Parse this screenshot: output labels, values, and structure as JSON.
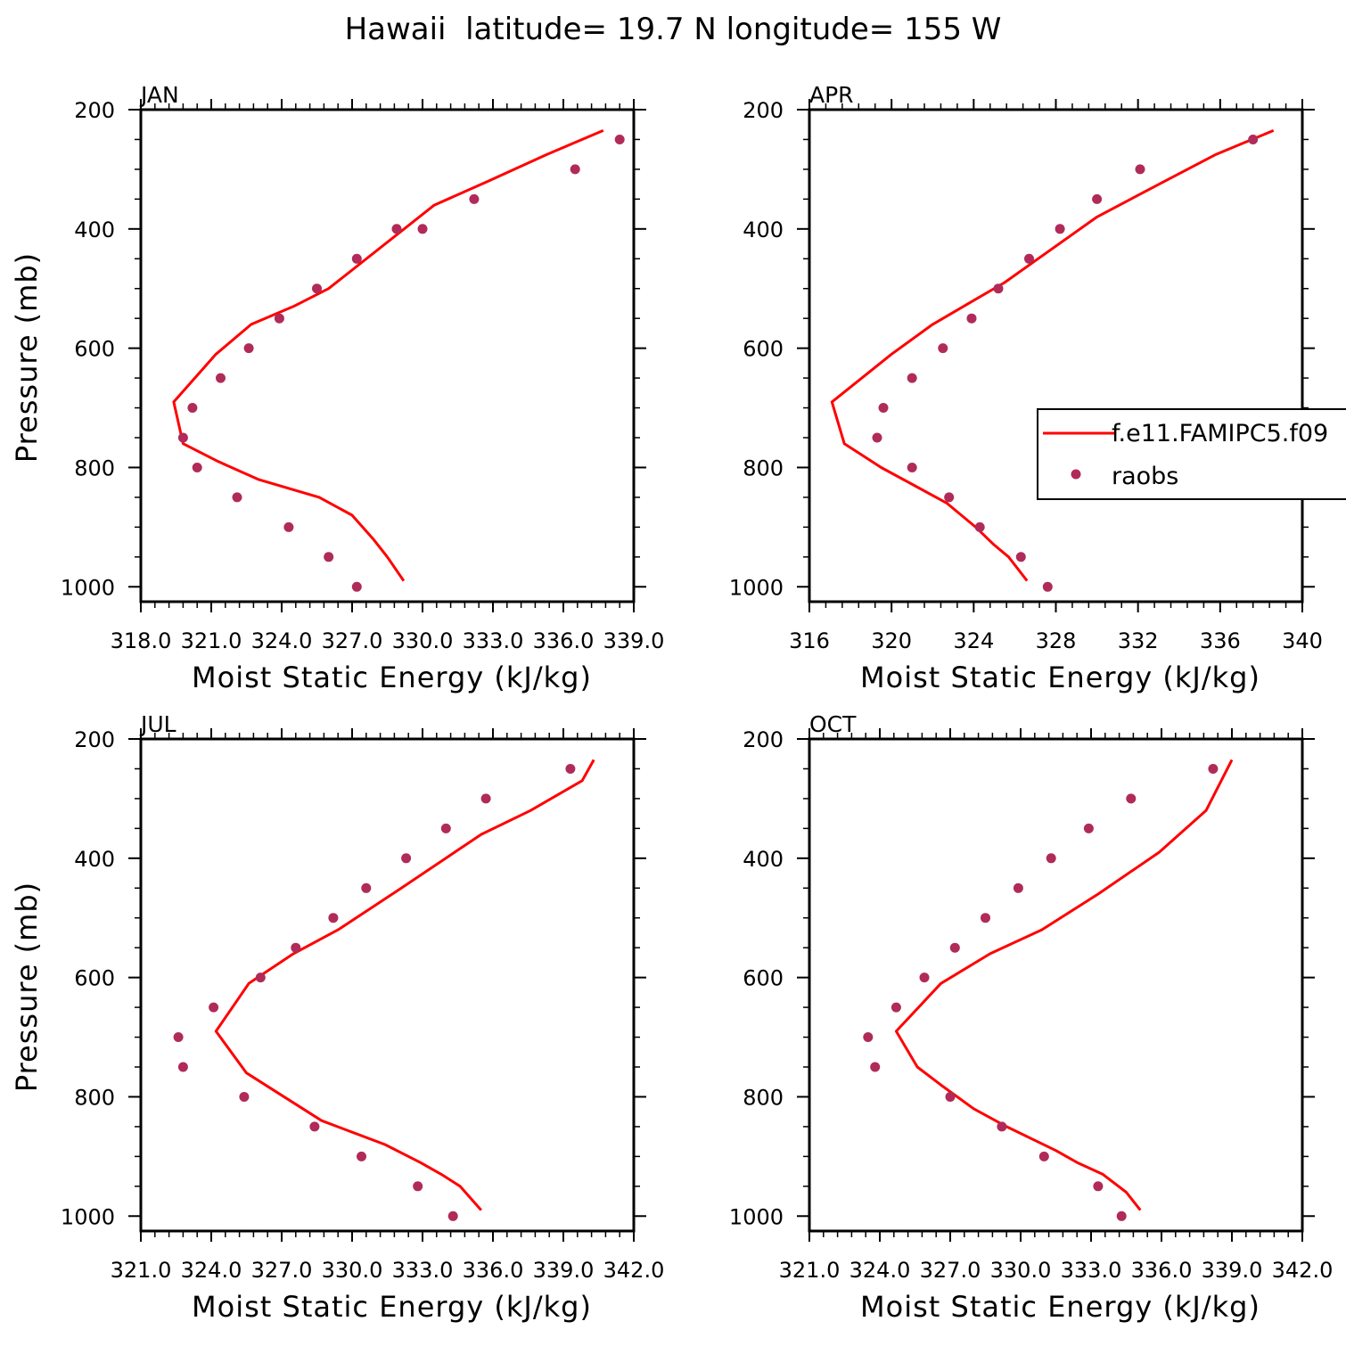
{
  "figure": {
    "title": "Hawaii  latitude= 19.7 N longitude= 155 W"
  },
  "colors": {
    "model": "#ff0000",
    "obs": "#b02a5a",
    "axis": "#000000",
    "background": "#ffffff"
  },
  "legend": {
    "model_label": "f.e11.FAMIPC5.f09",
    "obs_label": "raobs",
    "panel": 1,
    "placement": "right, overlapping figure edge"
  },
  "chart_data": [
    {
      "type": "line",
      "panel_label": "JAN",
      "xlabel": "Moist Static Energy (kJ/kg)",
      "ylabel": "Pressure (mb)",
      "xlim": [
        318,
        339
      ],
      "xticks": [
        318,
        321,
        324,
        327,
        330,
        333,
        336,
        339
      ],
      "xtick_labels": [
        "318.0",
        "321.0",
        "324.0",
        "327.0",
        "330.0",
        "333.0",
        "336.0",
        "339.0"
      ],
      "ylim": [
        200,
        1025
      ],
      "yticks": [
        200,
        400,
        600,
        800,
        1000
      ],
      "y_reversed": true,
      "series": [
        {
          "name": "f.e11.FAMIPC5.f09",
          "kind": "line",
          "x": [
            329.2,
            328.5,
            327.9,
            327.0,
            325.6,
            323.0,
            321.3,
            319.8,
            319.4,
            321.2,
            322.7,
            324.5,
            326.0,
            330.5,
            332.8,
            335.3,
            337.7
          ],
          "y": [
            990,
            950,
            920,
            880,
            850,
            820,
            790,
            760,
            690,
            610,
            560,
            530,
            500,
            360,
            320,
            275,
            235
          ]
        },
        {
          "name": "raobs",
          "kind": "scatter",
          "x": [
            327.2,
            326.0,
            324.3,
            322.1,
            320.4,
            319.8,
            320.2,
            321.4,
            322.6,
            323.9,
            325.5,
            327.2,
            328.9,
            330.0,
            332.2,
            336.5,
            338.4
          ],
          "y": [
            1000,
            950,
            900,
            850,
            800,
            750,
            700,
            650,
            600,
            550,
            500,
            450,
            400,
            400,
            350,
            300,
            250
          ]
        }
      ]
    },
    {
      "type": "line",
      "panel_label": "APR",
      "xlabel": "Moist Static Energy (kJ/kg)",
      "ylabel": "",
      "xlim": [
        316,
        340
      ],
      "xticks": [
        316,
        320,
        324,
        328,
        332,
        336,
        340
      ],
      "xtick_labels": [
        "316",
        "320",
        "324",
        "328",
        "332",
        "336",
        "340"
      ],
      "ylim": [
        200,
        1025
      ],
      "yticks": [
        200,
        400,
        600,
        800,
        1000
      ],
      "y_reversed": true,
      "series": [
        {
          "name": "f.e11.FAMIPC5.f09",
          "kind": "line",
          "x": [
            326.6,
            325.7,
            325.0,
            324.1,
            322.7,
            321.1,
            319.5,
            317.7,
            317.1,
            320.0,
            322.0,
            324.0,
            325.5,
            330.0,
            333.3,
            335.8,
            338.6
          ],
          "y": [
            990,
            950,
            930,
            900,
            860,
            830,
            800,
            760,
            690,
            610,
            560,
            520,
            490,
            380,
            320,
            275,
            235
          ]
        },
        {
          "name": "raobs",
          "kind": "scatter",
          "x": [
            327.6,
            326.3,
            324.3,
            322.8,
            321.0,
            319.3,
            319.6,
            321.0,
            322.5,
            323.9,
            325.2,
            326.7,
            328.2,
            330.0,
            332.1,
            337.6
          ],
          "y": [
            1000,
            950,
            900,
            850,
            800,
            750,
            700,
            650,
            600,
            550,
            500,
            450,
            400,
            350,
            300,
            250
          ]
        }
      ]
    },
    {
      "type": "line",
      "panel_label": "JUL",
      "xlabel": "Moist Static Energy (kJ/kg)",
      "ylabel": "Pressure (mb)",
      "xlim": [
        321,
        342
      ],
      "xticks": [
        321,
        324,
        327,
        330,
        333,
        336,
        339,
        342
      ],
      "xtick_labels": [
        "321.0",
        "324.0",
        "327.0",
        "330.0",
        "333.0",
        "336.0",
        "339.0",
        "342.0"
      ],
      "ylim": [
        200,
        1025
      ],
      "yticks": [
        200,
        400,
        600,
        800,
        1000
      ],
      "y_reversed": true,
      "series": [
        {
          "name": "f.e11.FAMIPC5.f09",
          "kind": "line",
          "x": [
            335.5,
            334.6,
            333.8,
            332.9,
            331.4,
            328.7,
            325.5,
            324.2,
            325.6,
            327.5,
            329.4,
            332.1,
            335.5,
            337.6,
            339.8,
            340.3
          ],
          "y": [
            990,
            950,
            930,
            910,
            880,
            840,
            760,
            690,
            610,
            560,
            520,
            450,
            360,
            320,
            270,
            235
          ]
        },
        {
          "name": "raobs",
          "kind": "scatter",
          "x": [
            334.3,
            332.8,
            330.4,
            328.4,
            325.4,
            322.8,
            322.6,
            324.1,
            326.1,
            327.6,
            329.2,
            330.6,
            332.3,
            334.0,
            335.7,
            339.3
          ],
          "y": [
            1000,
            950,
            900,
            850,
            800,
            750,
            700,
            650,
            600,
            550,
            500,
            450,
            400,
            350,
            300,
            250
          ]
        }
      ]
    },
    {
      "type": "line",
      "panel_label": "OCT",
      "xlabel": "Moist Static Energy (kJ/kg)",
      "ylabel": "",
      "xlim": [
        321,
        342
      ],
      "xticks": [
        321,
        324,
        327,
        330,
        333,
        336,
        339,
        342
      ],
      "xtick_labels": [
        "321.0",
        "324.0",
        "327.0",
        "330.0",
        "333.0",
        "336.0",
        "339.0",
        "342.0"
      ],
      "ylim": [
        200,
        1025
      ],
      "yticks": [
        200,
        400,
        600,
        800,
        1000
      ],
      "y_reversed": true,
      "series": [
        {
          "name": "f.e11.FAMIPC5.f09",
          "kind": "line",
          "x": [
            335.1,
            334.5,
            333.5,
            332.4,
            331.5,
            329.4,
            328.0,
            326.6,
            325.6,
            324.7,
            326.6,
            328.7,
            330.9,
            333.3,
            335.9,
            337.9,
            339.0
          ],
          "y": [
            990,
            960,
            930,
            910,
            890,
            850,
            820,
            780,
            750,
            690,
            610,
            560,
            520,
            460,
            390,
            320,
            235
          ]
        },
        {
          "name": "raobs",
          "kind": "scatter",
          "x": [
            334.3,
            333.3,
            331.0,
            329.2,
            327.0,
            323.8,
            323.5,
            324.7,
            325.9,
            327.2,
            328.5,
            329.9,
            331.3,
            332.9,
            334.7,
            338.2
          ],
          "y": [
            1000,
            950,
            900,
            850,
            800,
            750,
            700,
            650,
            600,
            550,
            500,
            450,
            400,
            350,
            300,
            250
          ]
        }
      ]
    }
  ]
}
